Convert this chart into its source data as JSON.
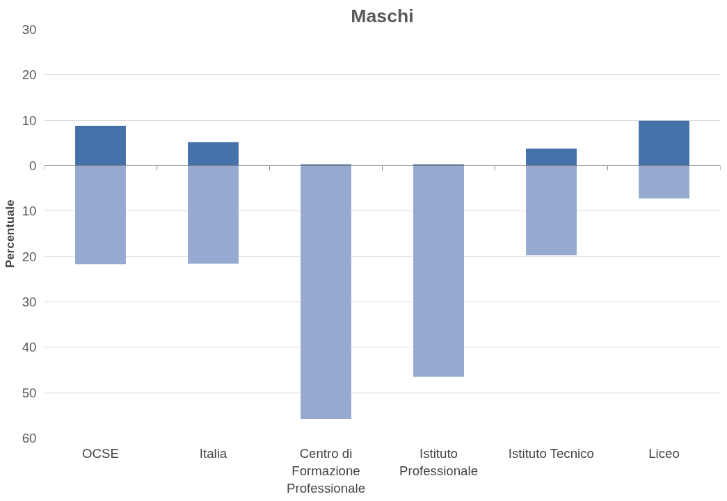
{
  "chart_data": {
    "type": "bar",
    "title": "Maschi",
    "ylabel": "Percentuale",
    "stacked": true,
    "categories": [
      "OCSE",
      "Italia",
      "Centro di Formazione Professionale",
      "Istituto Professionale",
      "Istituto Tecnico",
      "Liceo"
    ],
    "series": [
      {
        "color": "#4472a8",
        "values": [
          8.8,
          5.2,
          0.3,
          0.3,
          3.8,
          9.9
        ]
      },
      {
        "color": "#95a9d1",
        "values": [
          -21.7,
          -21.6,
          -55.8,
          -46.5,
          -19.7,
          -7.2
        ]
      }
    ],
    "ylim": [
      -60,
      30
    ],
    "yticks": [
      {
        "value": -60,
        "label": "60"
      },
      {
        "value": -50,
        "label": "50"
      },
      {
        "value": -40,
        "label": "40"
      },
      {
        "value": -30,
        "label": "30"
      },
      {
        "value": -20,
        "label": "20"
      },
      {
        "value": -10,
        "label": "10"
      },
      0,
      10,
      20,
      30
    ],
    "grid": "y"
  }
}
